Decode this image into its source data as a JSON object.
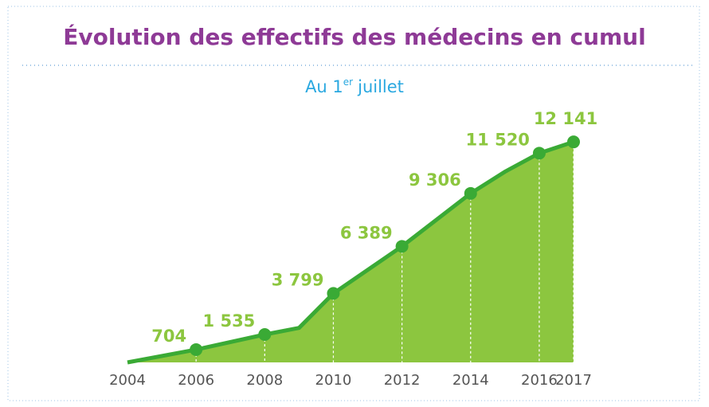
{
  "chart_data": {
    "type": "area",
    "title": "Évolution des effectifs des médecins en cumul",
    "subtitle_parts": [
      "Au 1",
      "er",
      "juillet"
    ],
    "x": [
      2004,
      2006,
      2008,
      2009,
      2010,
      2012,
      2014,
      2015,
      2016,
      2017
    ],
    "series": [
      {
        "name": "Médecins",
        "color": "#3aaa35",
        "fill": "#8cc63f",
        "values": [
          0,
          704,
          1535,
          1900,
          3799,
          6389,
          9306,
          10500,
          11520,
          12141
        ],
        "value_labels": [
          null,
          "704",
          "1 535",
          null,
          "3 799",
          "6 389",
          "9 306",
          null,
          "11 520",
          "12 141"
        ]
      }
    ],
    "xlim": [
      2004,
      2017
    ],
    "xticks": [
      2004,
      2006,
      2008,
      2010,
      2012,
      2014,
      2016,
      2017
    ],
    "ylim": [
      0,
      12500
    ]
  }
}
